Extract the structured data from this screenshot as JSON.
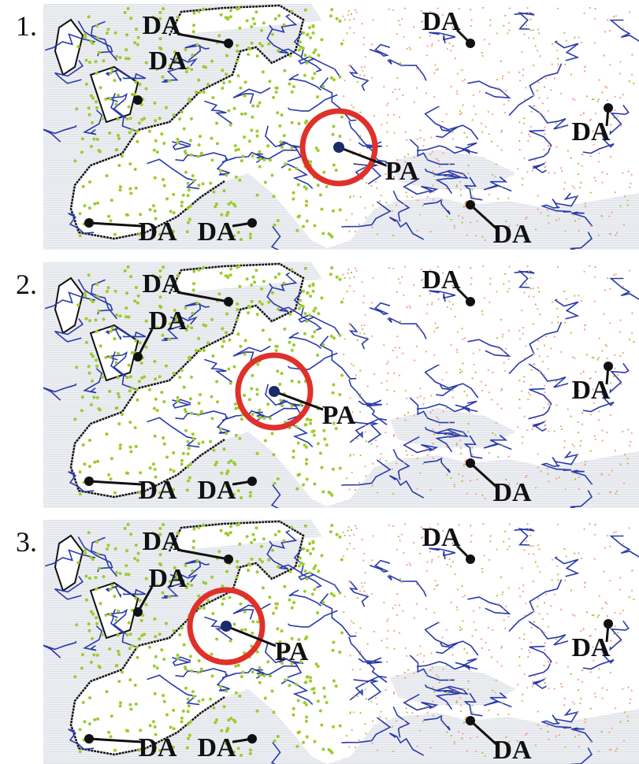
{
  "panels": [
    {
      "number": "1.",
      "labels": [
        {
          "text": "DA"
        },
        {
          "text": "DA"
        },
        {
          "text": "DA"
        },
        {
          "text": "DA"
        },
        {
          "text": "DA"
        },
        {
          "text": "DA"
        },
        {
          "text": "DA"
        },
        {
          "text": "PA"
        }
      ]
    },
    {
      "number": "2.",
      "labels": [
        {
          "text": "DA"
        },
        {
          "text": "DA"
        },
        {
          "text": "DA"
        },
        {
          "text": "DA"
        },
        {
          "text": "DA"
        },
        {
          "text": "DA"
        },
        {
          "text": "DA"
        },
        {
          "text": "PA"
        }
      ]
    },
    {
      "number": "3.",
      "labels": [
        {
          "text": "DA"
        },
        {
          "text": "DA"
        },
        {
          "text": "DA"
        },
        {
          "text": "DA"
        },
        {
          "text": "DA"
        },
        {
          "text": "DA"
        },
        {
          "text": "DA"
        },
        {
          "text": "PA"
        }
      ]
    }
  ]
}
